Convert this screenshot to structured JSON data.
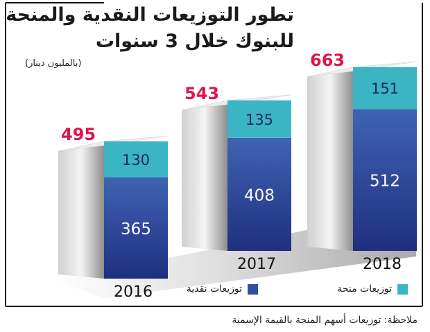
{
  "title_line1": "تطور التوزيعات النقدية والمنحة",
  "title_line2": "للبنوك خلال 3 سنوات",
  "unit": "(بالمليون دينار)",
  "note": "ملاحظة: توزيعات أسهم المنحة بالقيمة الإسمية",
  "legend": {
    "bonus": "توزيعات منحة",
    "cash": "توزيعات نقدية"
  },
  "colors": {
    "cash": "#2f4f9e",
    "bonus": "#3bb5c4",
    "total": "#e0154d",
    "frame": "#111111"
  },
  "chart_data": {
    "type": "bar",
    "stacked": true,
    "categories": [
      "2016",
      "2017",
      "2018"
    ],
    "series": [
      {
        "name": "توزيعات نقدية",
        "values": [
          365,
          408,
          512
        ]
      },
      {
        "name": "توزيعات منحة",
        "values": [
          130,
          135,
          151
        ]
      }
    ],
    "totals": [
      495,
      543,
      663
    ],
    "ylim": [
      0,
      700
    ],
    "legend_position": "bottom"
  }
}
